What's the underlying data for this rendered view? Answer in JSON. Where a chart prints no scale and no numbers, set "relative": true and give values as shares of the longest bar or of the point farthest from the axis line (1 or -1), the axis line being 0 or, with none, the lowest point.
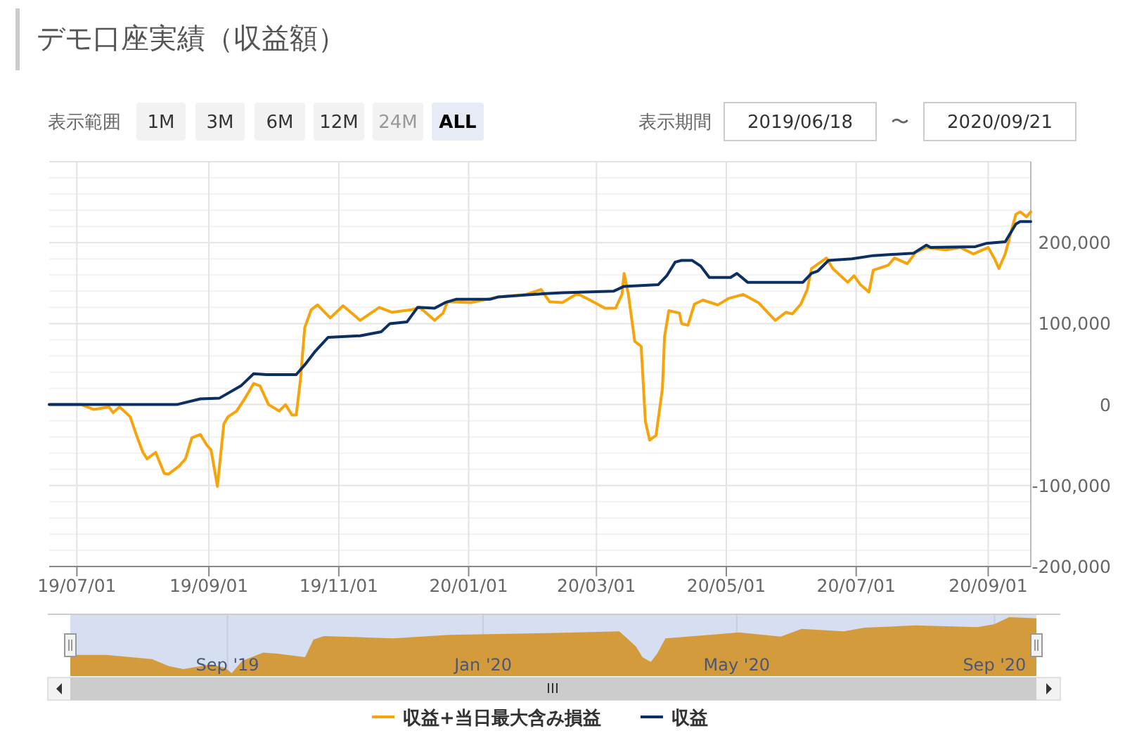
{
  "chart_data": [
    {
      "type": "line",
      "title": "デモ口座実績（収益額）",
      "annotations": [
        "表示範囲",
        "1M",
        "3M",
        "6M",
        "12M",
        "24M",
        "ALL",
        "表示期間",
        "2019/06/18",
        "〜",
        "2020/09/21"
      ],
      "xlim": [
        "2019-06-18",
        "2020-09-21"
      ],
      "xticks": [
        {
          "value": "2019-07-01",
          "label": "19/07/01"
        },
        {
          "value": "2019-09-01",
          "label": "19/09/01"
        },
        {
          "value": "2019-11-01",
          "label": "19/11/01"
        },
        {
          "value": "2020-01-01",
          "label": "20/01/01"
        },
        {
          "value": "2020-03-01",
          "label": "20/03/01"
        },
        {
          "value": "2020-05-01",
          "label": "20/05/01"
        },
        {
          "value": "2020-07-01",
          "label": "20/07/01"
        },
        {
          "value": "2020-09-01",
          "label": "20/09/01"
        }
      ],
      "ylim": [
        -200000,
        300000
      ],
      "yticks": [
        {
          "value": -200000,
          "label": "-200,000"
        },
        {
          "value": -100000,
          "label": "-100,000"
        },
        0,
        {
          "value": 100000,
          "label": "100,000"
        },
        {
          "value": 200000,
          "label": "200,000"
        },
        {
          "value": 300000,
          "label": null
        }
      ],
      "grid": true,
      "legend": "bottom",
      "marker": "none",
      "line_style": "solid",
      "series": [
        {
          "name": "収益+当日最大含み損益",
          "color": "#f7a30a",
          "x": [
            "2019-06-18",
            "2019-07-03",
            "2019-07-06",
            "2019-07-09",
            "2019-07-16",
            "2019-07-18",
            "2019-07-21",
            "2019-07-26",
            "2019-07-29",
            "2019-08-01",
            "2019-08-03",
            "2019-08-07",
            "2019-08-11",
            "2019-08-13",
            "2019-08-18",
            "2019-08-21",
            "2019-08-24",
            "2019-08-28",
            "2019-08-31",
            "2019-09-02",
            "2019-09-05",
            "2019-09-08",
            "2019-09-10",
            "2019-09-14",
            "2019-09-18",
            "2019-09-22",
            "2019-09-25",
            "2019-09-29",
            "2019-10-04",
            "2019-10-07",
            "2019-10-10",
            "2019-10-12",
            "2019-10-14",
            "2019-10-16",
            "2019-10-19",
            "2019-10-22",
            "2019-10-28",
            "2019-11-03",
            "2019-11-11",
            "2019-11-20",
            "2019-11-26",
            "2019-12-05",
            "2019-12-09",
            "2019-12-16",
            "2019-12-20",
            "2019-12-22",
            "2020-01-02",
            "2020-01-15",
            "2020-01-28",
            "2020-02-04",
            "2020-02-08",
            "2020-02-14",
            "2020-02-21",
            "2020-02-27",
            "2020-03-05",
            "2020-03-10",
            "2020-03-13",
            "2020-03-14",
            "2020-03-16",
            "2020-03-19",
            "2020-03-22",
            "2020-03-24",
            "2020-03-26",
            "2020-03-29",
            "2020-04-01",
            "2020-04-02",
            "2020-04-04",
            "2020-04-09",
            "2020-04-10",
            "2020-04-13",
            "2020-04-16",
            "2020-04-20",
            "2020-04-27",
            "2020-05-02",
            "2020-05-09",
            "2020-05-16",
            "2020-05-24",
            "2020-05-29",
            "2020-06-01",
            "2020-06-05",
            "2020-06-08",
            "2020-06-10",
            "2020-06-17",
            "2020-06-20",
            "2020-06-27",
            "2020-06-30",
            "2020-07-03",
            "2020-07-07",
            "2020-07-09",
            "2020-07-16",
            "2020-07-19",
            "2020-07-25",
            "2020-07-29",
            "2020-08-03",
            "2020-08-12",
            "2020-08-19",
            "2020-08-25",
            "2020-09-01",
            "2020-09-04",
            "2020-09-06",
            "2020-09-09",
            "2020-09-11",
            "2020-09-14",
            "2020-09-16",
            "2020-09-19",
            "2020-09-21"
          ],
          "values": [
            0,
            0,
            -3000,
            -6000,
            -3000,
            -10000,
            -3000,
            -15000,
            -38000,
            -59000,
            -67000,
            -59000,
            -85000,
            -86000,
            -76000,
            -67000,
            -41000,
            -37000,
            -50000,
            -56000,
            -101000,
            -24000,
            -15000,
            -8000,
            8000,
            26000,
            23000,
            0,
            -8000,
            0,
            -13000,
            -13000,
            31000,
            95000,
            117000,
            123000,
            107000,
            122000,
            104000,
            120000,
            114000,
            117000,
            120000,
            104000,
            113000,
            127000,
            126000,
            133000,
            136000,
            142000,
            127000,
            126000,
            137000,
            129000,
            119000,
            119000,
            136000,
            162000,
            136000,
            78000,
            72000,
            -21000,
            -44000,
            -38000,
            20000,
            84000,
            116000,
            113000,
            100000,
            98000,
            124000,
            129000,
            123000,
            131000,
            136000,
            126000,
            104000,
            114000,
            112000,
            124000,
            142000,
            168000,
            181000,
            168000,
            151000,
            159000,
            148000,
            139000,
            166000,
            172000,
            181000,
            174000,
            188000,
            194000,
            191000,
            194000,
            186000,
            194000,
            180000,
            168000,
            186000,
            206000,
            235000,
            238000,
            232000,
            238000
          ]
        },
        {
          "name": "収益",
          "color": "#0c2f63",
          "x": [
            "2019-06-18",
            "2019-08-17",
            "2019-08-28",
            "2019-09-06",
            "2019-09-16",
            "2019-09-22",
            "2019-09-28",
            "2019-10-12",
            "2019-10-16",
            "2019-10-21",
            "2019-10-27",
            "2019-11-11",
            "2019-11-21",
            "2019-11-25",
            "2019-12-03",
            "2019-12-08",
            "2019-12-16",
            "2019-12-21",
            "2019-12-26",
            "2020-01-11",
            "2020-01-15",
            "2020-02-06",
            "2020-02-14",
            "2020-03-09",
            "2020-03-14",
            "2020-03-30",
            "2020-04-03",
            "2020-04-07",
            "2020-04-10",
            "2020-04-15",
            "2020-04-19",
            "2020-04-23",
            "2020-05-03",
            "2020-05-06",
            "2020-05-11",
            "2020-06-06",
            "2020-06-10",
            "2020-06-13",
            "2020-06-18",
            "2020-06-29",
            "2020-07-09",
            "2020-07-28",
            "2020-08-03",
            "2020-08-05",
            "2020-08-26",
            "2020-08-31",
            "2020-09-09",
            "2020-09-14",
            "2020-09-16",
            "2020-09-21"
          ],
          "values": [
            0,
            0,
            7000,
            8000,
            23000,
            38000,
            37000,
            37000,
            49000,
            66000,
            83000,
            85000,
            90000,
            100000,
            102000,
            120000,
            119000,
            126000,
            130000,
            130000,
            133000,
            137000,
            138000,
            140000,
            146000,
            148000,
            159000,
            176000,
            178000,
            178000,
            171000,
            157000,
            157000,
            162000,
            151000,
            151000,
            162000,
            165000,
            178000,
            180000,
            184000,
            187000,
            197000,
            194000,
            195000,
            199000,
            201000,
            223000,
            226000,
            226000
          ]
        }
      ]
    },
    {
      "type": "area",
      "relative": true,
      "grid": "x",
      "tick_labels": "x",
      "xlim": [
        "2019-06-18",
        "2020-09-21"
      ],
      "xticks": [
        {
          "value": "2019-09-01",
          "label": "Sep '19"
        },
        {
          "value": "2020-01-01",
          "label": "Jan '20"
        },
        {
          "value": "2020-05-01",
          "label": "May '20"
        },
        {
          "value": "2020-09-01",
          "label": "Sep '20"
        }
      ],
      "series": [
        {
          "color": "#d39b3b",
          "x": [
            "2019-06-18",
            "2019-07-05",
            "2019-07-27",
            "2019-08-04",
            "2019-08-11",
            "2019-08-24",
            "2019-08-31",
            "2019-09-03",
            "2019-09-08",
            "2019-09-18",
            "2019-09-25",
            "2019-10-08",
            "2019-10-12",
            "2019-10-17",
            "2019-11-19",
            "2019-12-16",
            "2020-02-01",
            "2020-03-06",
            "2020-03-14",
            "2020-03-17",
            "2020-03-21",
            "2020-03-24",
            "2020-03-28",
            "2020-04-15",
            "2020-05-02",
            "2020-05-22",
            "2020-06-01",
            "2020-06-21",
            "2020-07-01",
            "2020-07-25",
            "2020-08-24",
            "2020-09-01",
            "2020-09-08",
            "2020-09-21"
          ],
          "values": [
            0.36,
            0.36,
            0.29,
            0.17,
            0.12,
            0.2,
            0.14,
            0.05,
            0.26,
            0.4,
            0.38,
            0.32,
            0.62,
            0.68,
            0.64,
            0.7,
            0.73,
            0.76,
            0.5,
            0.32,
            0.24,
            0.38,
            0.64,
            0.69,
            0.74,
            0.67,
            0.8,
            0.76,
            0.82,
            0.86,
            0.83,
            0.88,
            1,
            0.98
          ]
        }
      ]
    }
  ]
}
